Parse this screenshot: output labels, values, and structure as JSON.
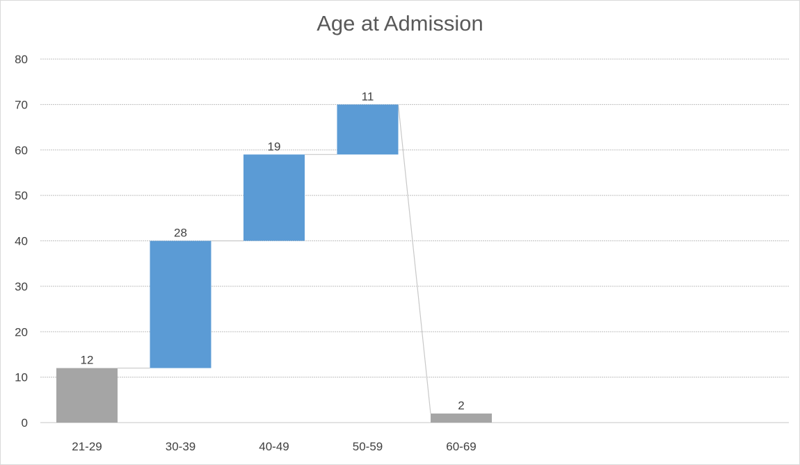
{
  "chart_data": {
    "type": "bar",
    "subtype": "waterfall",
    "title": "Age at Admission",
    "categories": [
      "21-29",
      "30-39",
      "40-49",
      "50-59",
      "60-69"
    ],
    "values": [
      12,
      28,
      19,
      11,
      2
    ],
    "kinds": [
      "total",
      "increase",
      "increase",
      "increase",
      "total"
    ],
    "ylim": [
      0,
      80
    ],
    "yticks": [
      0,
      10,
      20,
      30,
      40,
      50,
      60,
      70,
      80
    ],
    "xlabel": "",
    "ylabel": "",
    "grid": true,
    "legend": "none",
    "colors": {
      "total": "#a5a5a5",
      "increase": "#5b9bd5",
      "gridline": "#bfbfbf",
      "connector": "#c8c8c8",
      "axis": "#d9d9d9"
    }
  }
}
